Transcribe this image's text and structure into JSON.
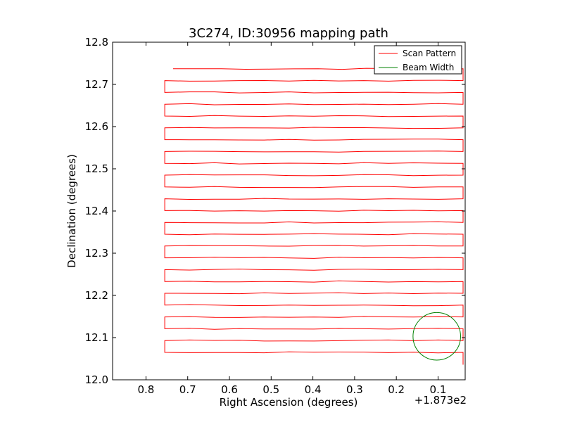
{
  "chart_data": {
    "type": "line",
    "title": "3C274, ID:30956 mapping path",
    "xlabel": "Right Ascension (degrees)",
    "ylabel": "Declination (degrees)",
    "x_offset_label": "+1.873e2",
    "xlim": [
      0.88,
      0.035
    ],
    "ylim": [
      12.0,
      12.8
    ],
    "x_inverted": true,
    "grid": false,
    "legend_position": "top-right",
    "x_ticks": [
      0.8,
      0.7,
      0.6,
      0.5,
      0.4,
      0.3,
      0.2,
      0.1
    ],
    "x_tick_labels": [
      "0.8",
      "0.7",
      "0.6",
      "0.5",
      "0.4",
      "0.3",
      "0.2",
      "0.1"
    ],
    "y_ticks": [
      12.0,
      12.1,
      12.2,
      12.3,
      12.4,
      12.5,
      12.6,
      12.7,
      12.8
    ],
    "y_tick_labels": [
      "12.0",
      "12.1",
      "12.2",
      "12.3",
      "12.4",
      "12.5",
      "12.6",
      "12.7",
      "12.8"
    ],
    "series": [
      {
        "name": "Scan Pattern",
        "color": "#ff0000",
        "pattern": "raster",
        "x_left": 0.755,
        "x_right": 0.04,
        "x_start": 0.735,
        "x_end": 0.04,
        "y_start": 12.737,
        "y_end": 12.037,
        "leg_count": 26
      },
      {
        "name": "Beam Width",
        "color": "#008000",
        "shape": "circle",
        "center_ra": 0.103,
        "center_dec": 12.103,
        "radius_ra": 0.057
      }
    ]
  }
}
